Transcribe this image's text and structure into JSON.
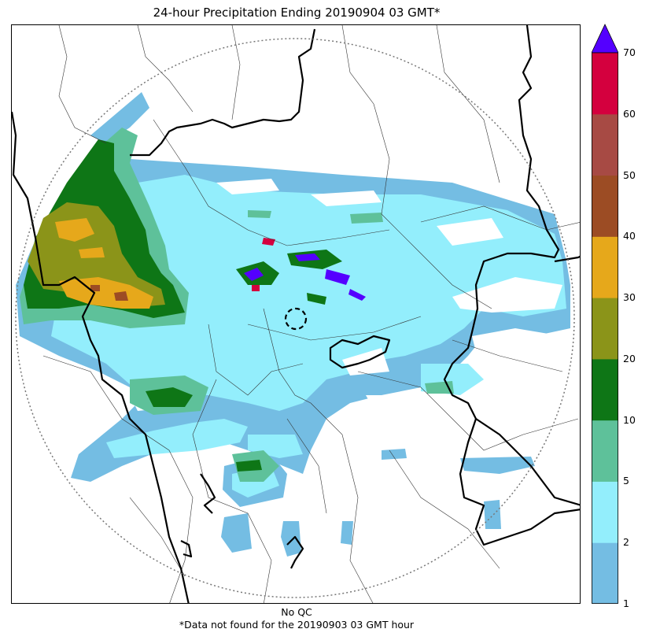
{
  "title": "24-hour Precipitation Ending 20190904 03 GMT*",
  "footer": {
    "qc_note": "No QC",
    "missing_note": "*Data not found for the 20190903 03 GMT hour"
  },
  "colorbar": {
    "levels": [
      "1",
      "2",
      "5",
      "10",
      "20",
      "30",
      "40",
      "50",
      "60",
      "70"
    ],
    "colors": [
      "#74bde3",
      "#93eefc",
      "#5ec19a",
      "#0e7616",
      "#8b9419",
      "#e6a81b",
      "#9c4c24",
      "#a74a44",
      "#d4003e"
    ],
    "extend_color": "#5400ff"
  },
  "map": {
    "radar_range_ring": "dotted",
    "radar_site_marker": "dashed-circle"
  }
}
